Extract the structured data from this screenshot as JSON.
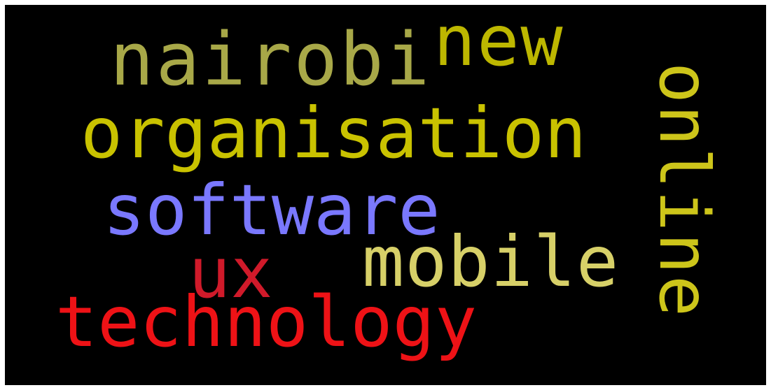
{
  "word_cloud": {
    "background_color": "#000000",
    "words": [
      {
        "id": "nairobi",
        "text": "nairobi",
        "color": "#a8a848",
        "orientation": "horizontal"
      },
      {
        "id": "new",
        "text": "new",
        "color": "#bdb700",
        "orientation": "horizontal"
      },
      {
        "id": "organisation",
        "text": "organisation",
        "color": "#c9c200",
        "orientation": "horizontal"
      },
      {
        "id": "online",
        "text": "online",
        "color": "#cdc51a",
        "orientation": "vertical"
      },
      {
        "id": "software",
        "text": "software",
        "color": "#7a78ff",
        "orientation": "horizontal"
      },
      {
        "id": "ux",
        "text": "ux",
        "color": "#d01a2a",
        "orientation": "horizontal"
      },
      {
        "id": "mobile",
        "text": "mobile",
        "color": "#d7d068",
        "orientation": "horizontal"
      },
      {
        "id": "technology",
        "text": "technology",
        "color": "#ee1216",
        "orientation": "horizontal"
      }
    ]
  }
}
